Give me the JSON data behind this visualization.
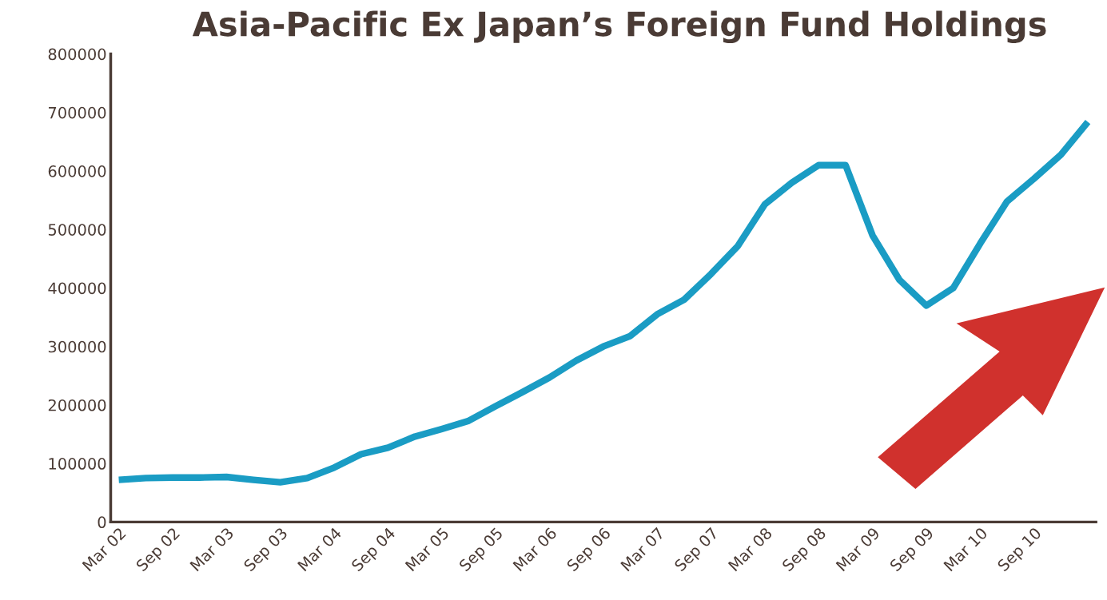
{
  "chart_data": {
    "type": "line",
    "title": "Asia-Pacific Ex Japan’s Foreign Fund Holdings",
    "categories": [
      "Mar 02",
      null,
      "Sep 02",
      null,
      "Mar 03",
      null,
      "Sep 03",
      null,
      "Mar 04",
      null,
      "Sep 04",
      null,
      "Mar 05",
      null,
      "Sep 05",
      null,
      "Mar 06",
      null,
      "Sep 06",
      null,
      "Mar 07",
      null,
      "Sep 07",
      null,
      "Mar 08",
      null,
      "Sep 08",
      null,
      "Mar 09",
      null,
      "Sep 09",
      null,
      "Mar 10",
      null,
      "Sep 10",
      null,
      null
    ],
    "series": [
      {
        "color": "#1a9cc4",
        "values": [
          72000,
          75000,
          76000,
          76000,
          77000,
          72000,
          68000,
          75000,
          93000,
          116000,
          127000,
          146000,
          159000,
          173000,
          198000,
          222000,
          247000,
          276000,
          300000,
          318000,
          355000,
          380000,
          424000,
          472000,
          543000,
          580000,
          610000,
          610000,
          490000,
          414000,
          370000,
          400000,
          476000,
          548000,
          587000,
          628000,
          684000
        ]
      }
    ],
    "ylim": [
      0,
      800000
    ],
    "yticks": [
      0,
      100000,
      200000,
      300000,
      400000,
      500000,
      600000,
      700000,
      800000
    ],
    "grid": false,
    "legend": false,
    "marker": "none",
    "line_style": "solid"
  }
}
